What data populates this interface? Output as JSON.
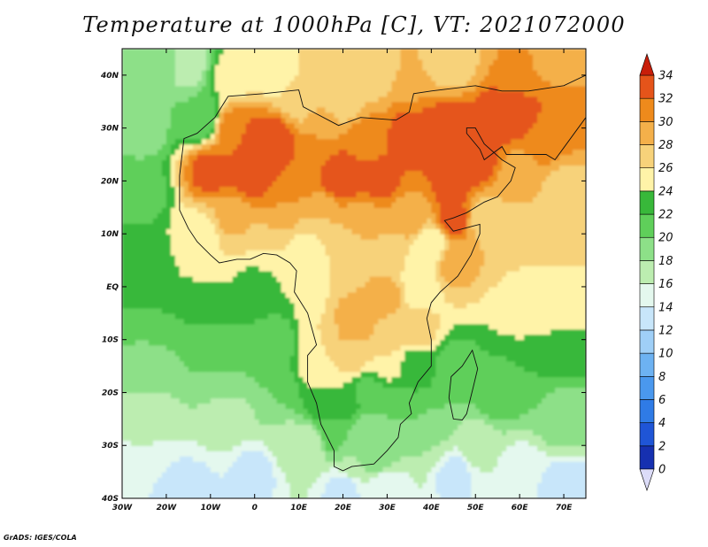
{
  "title": "Temperature at 1000hPa [C], VT: 2021072000",
  "credit": "GrADS: IGES/COLA",
  "map": {
    "lon_range": [
      -30,
      75
    ],
    "lat_range": [
      -40,
      45
    ],
    "lon_ticks": [
      {
        "value": -30,
        "label": "30W"
      },
      {
        "value": -20,
        "label": "20W"
      },
      {
        "value": -10,
        "label": "10W"
      },
      {
        "value": 0,
        "label": "0"
      },
      {
        "value": 10,
        "label": "10E"
      },
      {
        "value": 20,
        "label": "20E"
      },
      {
        "value": 30,
        "label": "30E"
      },
      {
        "value": 40,
        "label": "40E"
      },
      {
        "value": 50,
        "label": "50E"
      },
      {
        "value": 60,
        "label": "60E"
      },
      {
        "value": 70,
        "label": "70E"
      }
    ],
    "lat_ticks": [
      {
        "value": 40,
        "label": "40N"
      },
      {
        "value": 30,
        "label": "30N"
      },
      {
        "value": 20,
        "label": "20N"
      },
      {
        "value": 10,
        "label": "10N"
      },
      {
        "value": 0,
        "label": "EQ"
      },
      {
        "value": -10,
        "label": "10S"
      },
      {
        "value": -20,
        "label": "20S"
      },
      {
        "value": -30,
        "label": "30S"
      },
      {
        "value": -40,
        "label": "40S"
      }
    ],
    "outline": [
      [
        -17,
        21
      ],
      [
        -16,
        28
      ],
      [
        -13,
        29
      ],
      [
        -9,
        32
      ],
      [
        -6,
        36
      ],
      [
        2,
        36.5
      ],
      [
        10,
        37.2
      ],
      [
        11,
        34
      ],
      [
        19,
        30.5
      ],
      [
        24,
        32
      ],
      [
        32,
        31.5
      ],
      [
        35,
        33
      ],
      [
        36,
        36.5
      ],
      [
        40,
        37
      ],
      [
        50,
        38
      ],
      [
        56,
        37
      ],
      [
        62,
        37
      ],
      [
        70,
        38
      ],
      [
        75,
        40
      ],
      [
        75,
        32
      ],
      [
        68,
        24
      ],
      [
        66,
        25
      ],
      [
        62,
        25
      ],
      [
        57,
        25
      ],
      [
        56,
        26.5
      ],
      [
        52,
        24
      ],
      [
        51,
        26
      ],
      [
        48,
        29
      ],
      [
        48,
        30
      ],
      [
        50,
        30
      ],
      [
        52,
        27
      ],
      [
        56,
        24
      ],
      [
        59,
        22.5
      ],
      [
        58,
        20
      ],
      [
        55,
        17
      ],
      [
        52,
        16
      ],
      [
        48,
        14
      ],
      [
        45,
        13
      ],
      [
        43,
        12.5
      ],
      [
        45,
        10.5
      ],
      [
        51,
        11.8
      ],
      [
        51,
        10
      ],
      [
        49,
        6
      ],
      [
        46,
        2
      ],
      [
        42,
        -1
      ],
      [
        40,
        -3
      ],
      [
        39,
        -6
      ],
      [
        40,
        -10
      ],
      [
        40,
        -15
      ],
      [
        37,
        -18
      ],
      [
        35,
        -22
      ],
      [
        35.5,
        -24
      ],
      [
        33,
        -26
      ],
      [
        32.5,
        -28.5
      ],
      [
        30,
        -31
      ],
      [
        27,
        -33.5
      ],
      [
        22,
        -34
      ],
      [
        20,
        -34.8
      ],
      [
        18,
        -34
      ],
      [
        18,
        -31
      ],
      [
        16.5,
        -28.5
      ],
      [
        15,
        -26
      ],
      [
        14,
        -22
      ],
      [
        12,
        -18
      ],
      [
        12,
        -13
      ],
      [
        14,
        -11
      ],
      [
        13,
        -8
      ],
      [
        12,
        -5
      ],
      [
        9,
        -1
      ],
      [
        9.5,
        3
      ],
      [
        8,
        4.5
      ],
      [
        5,
        6
      ],
      [
        2,
        6.3
      ],
      [
        -1,
        5.2
      ],
      [
        -4,
        5.2
      ],
      [
        -8,
        4.5
      ],
      [
        -10,
        6
      ],
      [
        -13,
        8.5
      ],
      [
        -15,
        11
      ],
      [
        -17,
        14.5
      ],
      [
        -17,
        21
      ]
    ],
    "madagascar": [
      [
        49.3,
        -12
      ],
      [
        50.5,
        -15.5
      ],
      [
        49.5,
        -19
      ],
      [
        48,
        -24
      ],
      [
        47,
        -25.2
      ],
      [
        45,
        -25
      ],
      [
        44,
        -21
      ],
      [
        44.5,
        -17
      ],
      [
        47,
        -15
      ],
      [
        49.3,
        -12
      ]
    ],
    "field": [
      {
        "lon": -22,
        "lat": 42,
        "t": 19
      },
      {
        "lon": -25,
        "lat": 30,
        "t": 19
      },
      {
        "lon": -25,
        "lat": 18,
        "t": 21
      },
      {
        "lon": -25,
        "lat": 5,
        "t": 23
      },
      {
        "lon": -25,
        "lat": -5,
        "t": 22
      },
      {
        "lon": -25,
        "lat": -15,
        "t": 19
      },
      {
        "lon": -25,
        "lat": -25,
        "t": 17
      },
      {
        "lon": -25,
        "lat": -35,
        "t": 14
      },
      {
        "lon": -15,
        "lat": 42,
        "t": 17
      },
      {
        "lon": -12,
        "lat": 32,
        "t": 20
      },
      {
        "lon": -12,
        "lat": 10,
        "t": 25
      },
      {
        "lon": -10,
        "lat": -5,
        "t": 22
      },
      {
        "lon": -5,
        "lat": -15,
        "t": 20
      },
      {
        "lon": -5,
        "lat": -25,
        "t": 17
      },
      {
        "lon": 0,
        "lat": -35,
        "t": 13
      },
      {
        "lon": -5,
        "lat": 40,
        "t": 25
      },
      {
        "lon": 5,
        "lat": 40,
        "t": 25
      },
      {
        "lon": 15,
        "lat": 42,
        "t": 26
      },
      {
        "lon": 25,
        "lat": 40,
        "t": 27
      },
      {
        "lon": 35,
        "lat": 42,
        "t": 28
      },
      {
        "lon": 45,
        "lat": 42,
        "t": 27
      },
      {
        "lon": 60,
        "lat": 42,
        "t": 30
      },
      {
        "lon": 70,
        "lat": 42,
        "t": 29
      },
      {
        "lon": 10,
        "lat": 35,
        "t": 27
      },
      {
        "lon": 20,
        "lat": 35,
        "t": 27
      },
      {
        "lon": -5,
        "lat": 30,
        "t": 31
      },
      {
        "lon": 0,
        "lat": 27,
        "t": 34
      },
      {
        "lon": 5,
        "lat": 28,
        "t": 33
      },
      {
        "lon": 15,
        "lat": 29,
        "t": 30
      },
      {
        "lon": 25,
        "lat": 28,
        "t": 31
      },
      {
        "lon": -10,
        "lat": 22,
        "t": 33
      },
      {
        "lon": 0,
        "lat": 21,
        "t": 34
      },
      {
        "lon": 10,
        "lat": 22,
        "t": 32
      },
      {
        "lon": 20,
        "lat": 21,
        "t": 34
      },
      {
        "lon": 28,
        "lat": 20,
        "t": 33
      },
      {
        "lon": 35,
        "lat": 28,
        "t": 33
      },
      {
        "lon": 45,
        "lat": 30,
        "t": 34
      },
      {
        "lon": 50,
        "lat": 25,
        "t": 34
      },
      {
        "lon": 45,
        "lat": 20,
        "t": 33
      },
      {
        "lon": 55,
        "lat": 32,
        "t": 33
      },
      {
        "lon": 60,
        "lat": 32,
        "t": 33
      },
      {
        "lon": 65,
        "lat": 28,
        "t": 31
      },
      {
        "lon": 70,
        "lat": 33,
        "t": 32
      },
      {
        "lon": 60,
        "lat": 22,
        "t": 29
      },
      {
        "lon": 70,
        "lat": 18,
        "t": 27
      },
      {
        "lon": 45,
        "lat": 13,
        "t": 33
      },
      {
        "lon": 52,
        "lat": 13,
        "t": 27
      },
      {
        "lon": 60,
        "lat": 10,
        "t": 26
      },
      {
        "lon": 70,
        "lat": 5,
        "t": 26
      },
      {
        "lon": 60,
        "lat": -5,
        "t": 25
      },
      {
        "lon": 70,
        "lat": -10,
        "t": 24
      },
      {
        "lon": 60,
        "lat": -15,
        "t": 22
      },
      {
        "lon": 55,
        "lat": -20,
        "t": 21
      },
      {
        "lon": 70,
        "lat": -25,
        "t": 19
      },
      {
        "lon": 50,
        "lat": -30,
        "t": 17
      },
      {
        "lon": 60,
        "lat": -35,
        "t": 15
      },
      {
        "lon": 45,
        "lat": -35,
        "t": 13
      },
      {
        "lon": 40,
        "lat": -30,
        "t": 18
      },
      {
        "lon": 40,
        "lat": -25,
        "t": 20
      },
      {
        "lon": 45,
        "lat": -15,
        "t": 21
      },
      {
        "lon": -5,
        "lat": 13,
        "t": 29
      },
      {
        "lon": 5,
        "lat": 15,
        "t": 30
      },
      {
        "lon": 15,
        "lat": 13,
        "t": 28
      },
      {
        "lon": 25,
        "lat": 13,
        "t": 29
      },
      {
        "lon": 35,
        "lat": 13,
        "t": 29
      },
      {
        "lon": 40,
        "lat": 8,
        "t": 24
      },
      {
        "lon": 45,
        "lat": 5,
        "t": 29
      },
      {
        "lon": -8,
        "lat": 7,
        "t": 26
      },
      {
        "lon": 2,
        "lat": 8,
        "t": 26
      },
      {
        "lon": 12,
        "lat": 7,
        "t": 25
      },
      {
        "lon": 22,
        "lat": 7,
        "t": 27
      },
      {
        "lon": 32,
        "lat": 5,
        "t": 26
      },
      {
        "lon": 12,
        "lat": 0,
        "t": 24
      },
      {
        "lon": 22,
        "lat": 0,
        "t": 28
      },
      {
        "lon": 30,
        "lat": -1,
        "t": 29
      },
      {
        "lon": 37,
        "lat": 0,
        "t": 24
      },
      {
        "lon": 15,
        "lat": -8,
        "t": 26
      },
      {
        "lon": 22,
        "lat": -7,
        "t": 30
      },
      {
        "lon": 30,
        "lat": -8,
        "t": 28
      },
      {
        "lon": 37,
        "lat": -8,
        "t": 27
      },
      {
        "lon": 15,
        "lat": -15,
        "t": 26
      },
      {
        "lon": 22,
        "lat": -13,
        "t": 27
      },
      {
        "lon": 30,
        "lat": -14,
        "t": 26
      },
      {
        "lon": 36,
        "lat": -15,
        "t": 23
      },
      {
        "lon": 15,
        "lat": -22,
        "t": 23
      },
      {
        "lon": 20,
        "lat": -22,
        "t": 24
      },
      {
        "lon": 26,
        "lat": -20,
        "t": 21
      },
      {
        "lon": 32,
        "lat": -22,
        "t": 21
      },
      {
        "lon": 18,
        "lat": -28,
        "t": 21
      },
      {
        "lon": 25,
        "lat": -28,
        "t": 18
      },
      {
        "lon": 30,
        "lat": -28,
        "t": 18
      },
      {
        "lon": 22,
        "lat": -33,
        "t": 18
      },
      {
        "lon": 28,
        "lat": -32,
        "t": 19
      },
      {
        "lon": 12,
        "lat": -30,
        "t": 16
      },
      {
        "lon": 20,
        "lat": -38,
        "t": 13
      },
      {
        "lon": 30,
        "lat": -38,
        "t": 14
      },
      {
        "lon": -15,
        "lat": -39,
        "t": 13
      },
      {
        "lon": 70,
        "lat": -39,
        "t": 12
      },
      {
        "lon": 5,
        "lat": -20,
        "t": 20
      },
      {
        "lon": 0,
        "lat": 0,
        "t": 23
      },
      {
        "lon": 5,
        "lat": -10,
        "t": 21
      },
      {
        "lon": 8,
        "lat": -30,
        "t": 17
      }
    ]
  },
  "colorbar": {
    "levels": [
      "0",
      "2",
      "4",
      "6",
      "8",
      "10",
      "12",
      "14",
      "16",
      "18",
      "20",
      "22",
      "24",
      "26",
      "28",
      "30",
      "32",
      "34"
    ],
    "colors": [
      "#0a1a6e",
      "#1630b0",
      "#1f55d6",
      "#2f7be6",
      "#4a98ee",
      "#6db2f2",
      "#9fcff7",
      "#c8e6fa",
      "#e4f8ee",
      "#bcedb0",
      "#8de088",
      "#5fcf5a",
      "#38b83a",
      "#fff3a8",
      "#f7d27a",
      "#f4b04a",
      "#ee8a1c",
      "#e5541a",
      "#cc220c"
    ],
    "low_color": "#dcdcf8",
    "high_color": "#c81e0a"
  }
}
